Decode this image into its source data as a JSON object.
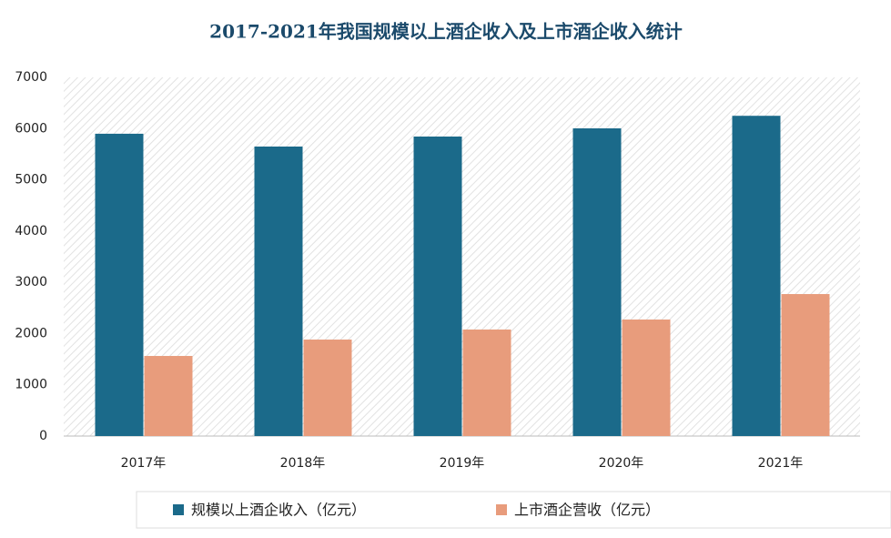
{
  "chart_data": {
    "type": "bar",
    "title": "2017-2021年我国规模以上酒企收入及上市酒企收入统计",
    "categories": [
      "2017年",
      "2018年",
      "2019年",
      "2020年",
      "2021年"
    ],
    "series": [
      {
        "name": "规模以上酒企收入（亿元）",
        "color": "#1b6a8a",
        "values": [
          5900,
          5650,
          5845,
          6005,
          6250
        ]
      },
      {
        "name": "上市酒企营收（亿元）",
        "color": "#e89c7c",
        "values": [
          1563,
          1883,
          2079,
          2274,
          2771
        ]
      }
    ],
    "ylim": [
      0,
      7000
    ],
    "yticks": [
      0,
      1000,
      2000,
      3000,
      4000,
      5000,
      6000,
      7000
    ],
    "legend": "bottom"
  }
}
